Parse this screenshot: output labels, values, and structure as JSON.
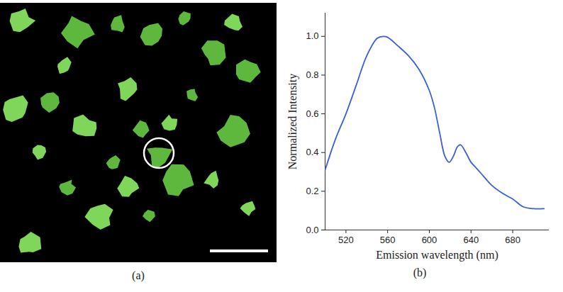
{
  "image_panel": {
    "label": "(a)"
  },
  "chart_data": {
    "type": "line",
    "panel_label": "(b)",
    "x_label": "Emission wavelength (nm)",
    "y_label": "Normalized Intensity",
    "x": [
      500,
      510,
      520,
      530,
      540,
      550,
      556,
      560,
      570,
      580,
      590,
      600,
      605,
      610,
      615,
      619,
      623,
      627,
      630,
      635,
      640,
      645,
      650,
      660,
      670,
      680,
      690,
      700,
      710
    ],
    "values": [
      0.31,
      0.47,
      0.6,
      0.75,
      0.9,
      0.99,
      1.0,
      0.995,
      0.95,
      0.9,
      0.83,
      0.72,
      0.63,
      0.5,
      0.38,
      0.35,
      0.38,
      0.43,
      0.44,
      0.4,
      0.35,
      0.32,
      0.29,
      0.23,
      0.19,
      0.16,
      0.12,
      0.11,
      0.11
    ],
    "color": "#3a5fd9",
    "xlim": [
      500,
      715
    ],
    "xticks": [
      520,
      560,
      600,
      640,
      680
    ],
    "ylim": [
      0,
      1.12
    ],
    "yticks": [
      {
        "value": 0,
        "label": "0.0"
      },
      {
        "value": 0.2,
        "label": "0.2"
      },
      {
        "value": 0.4,
        "label": "0.4"
      },
      {
        "value": 0.6,
        "label": "0.6"
      },
      {
        "value": 0.8,
        "label": "0.8"
      },
      {
        "value": 1,
        "label": "1.0"
      }
    ],
    "grid": false
  }
}
